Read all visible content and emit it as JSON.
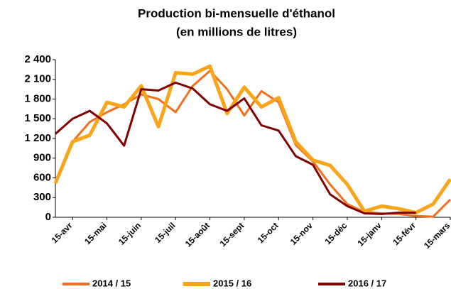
{
  "chart_data": {
    "type": "line",
    "title": "Production bi-mensuelle d'éthanol",
    "subtitle": "(en millions de litres)",
    "categories": [
      null,
      "15-avr",
      null,
      "15-mai",
      null,
      "15-juin",
      null,
      "15-juil",
      null,
      "15-août",
      null,
      "15-sept",
      null,
      "15-oct",
      null,
      "15-nov",
      null,
      "15-déc",
      null,
      "15-janv",
      null,
      "15-févr",
      null,
      "15-mars"
    ],
    "series": [
      {
        "name": "2014 / 15",
        "color": "#f07020",
        "width": 3,
        "values": [
          520,
          1150,
          1450,
          1600,
          1720,
          1870,
          1800,
          1600,
          2000,
          2230,
          1950,
          1550,
          1920,
          1750,
          1100,
          850,
          500,
          200,
          80,
          60,
          50,
          20,
          10,
          270
        ]
      },
      {
        "name": "2015 / 16",
        "color": "#f9a51a",
        "width": 5,
        "values": [
          520,
          1150,
          1250,
          1750,
          1680,
          2000,
          1380,
          2200,
          2180,
          2300,
          1580,
          1980,
          1680,
          1820,
          1150,
          870,
          790,
          500,
          90,
          170,
          130,
          70,
          200,
          580
        ]
      },
      {
        "name": "2016 / 17",
        "color": "#800000",
        "width": 3,
        "values": [
          1270,
          1500,
          1620,
          1430,
          1090,
          1950,
          1930,
          2050,
          1960,
          1720,
          1620,
          1810,
          1400,
          1320,
          930,
          800,
          350,
          170,
          60,
          50,
          70,
          70,
          null,
          null
        ]
      }
    ],
    "ylim": [
      0,
      2400
    ],
    "yticks": [
      0,
      300,
      600,
      900,
      {
        "value": 1200,
        "label": "1 200"
      },
      {
        "value": 1500,
        "label": "1 500"
      },
      {
        "value": 1800,
        "label": "1 800"
      },
      {
        "value": 2100,
        "label": "2 100"
      },
      {
        "value": 2400,
        "label": "2 400"
      }
    ],
    "grid": false
  }
}
